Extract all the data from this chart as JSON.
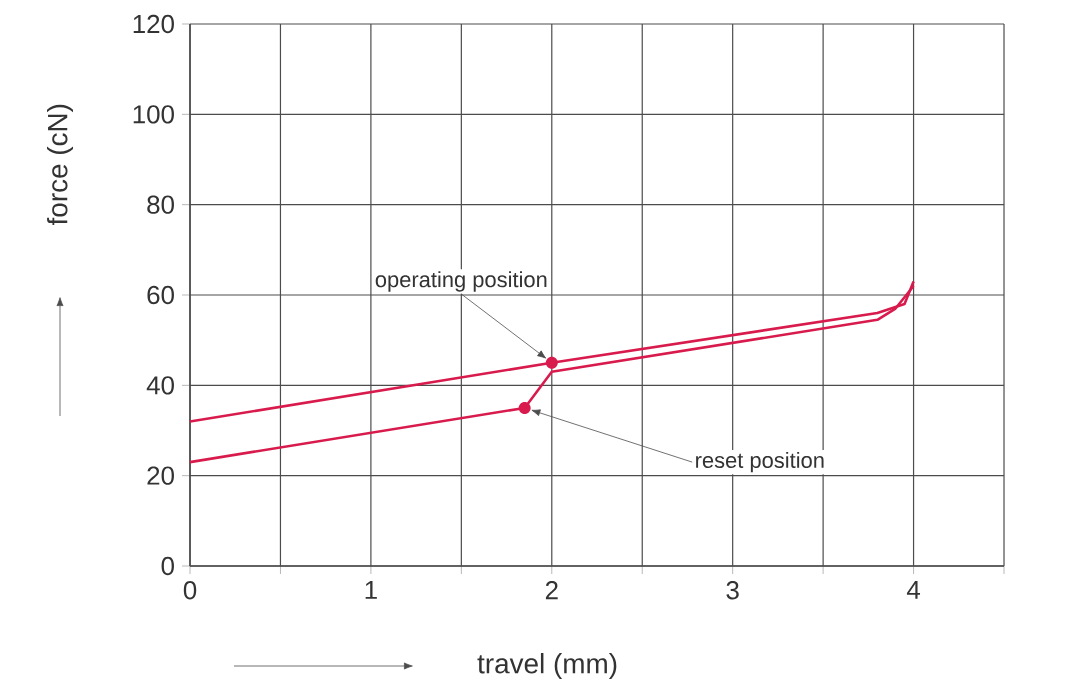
{
  "chart_data": {
    "type": "line",
    "xlabel": "travel (mm)",
    "ylabel": "force (cN)",
    "xlim": [
      0,
      4.5
    ],
    "ylim": [
      0,
      120
    ],
    "xticks": [
      0,
      {
        "value": 0.5,
        "label": null
      },
      1,
      {
        "value": 1.5,
        "label": null
      },
      2,
      {
        "value": 2.5,
        "label": null
      },
      3,
      {
        "value": 3.5,
        "label": null
      },
      4,
      {
        "value": 4.5,
        "label": null
      }
    ],
    "yticks": [
      0,
      20,
      40,
      60,
      80,
      100,
      120
    ],
    "grid": true,
    "marker": "none",
    "line_style": "solid",
    "series": [
      {
        "color": "#d81b4c",
        "x": [
          0,
          2,
          3.8,
          3.95,
          4
        ],
        "values": [
          32,
          45,
          56,
          58,
          63
        ]
      },
      {
        "color": "#d81b4c",
        "x": [
          4,
          3.9,
          3.8,
          2,
          1.85,
          0
        ],
        "values": [
          62,
          57,
          54.5,
          43,
          35,
          23
        ]
      }
    ],
    "annotations": [
      {
        "text": "operating position",
        "x": 2,
        "y": 45
      },
      {
        "text": "reset position",
        "x": 1.85,
        "y": 35
      }
    ]
  }
}
